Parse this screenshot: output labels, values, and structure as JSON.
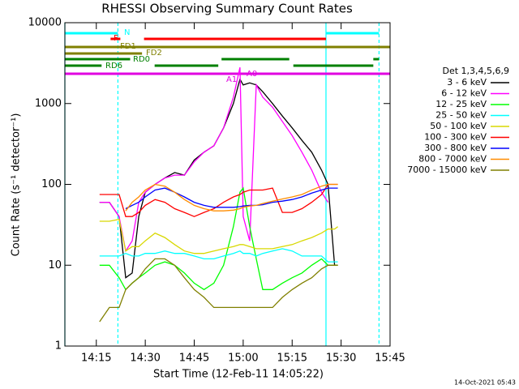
{
  "chart_data": {
    "type": "line",
    "title": "RHESSI Observing Summary Count Rates",
    "x_label": "Start Time (12-Feb-11 14:05:22)",
    "y_label": "Count Rate (s⁻¹ detector⁻¹)",
    "footer": "14-Oct-2021 05:43",
    "log_y": true,
    "xlim": [
      "14:05:22",
      "15:45"
    ],
    "xticks": [
      "14:15",
      "14:30",
      "14:45",
      "15:00",
      "15:15",
      "15:30",
      "15:45"
    ],
    "ylim": [
      1,
      10000
    ],
    "yticks": [
      1,
      10,
      100,
      1000,
      10000
    ],
    "legend_title": "Det 1,3,4,5,6,9",
    "x": [
      "14:16",
      "14:19",
      "14:22",
      "14:24",
      "14:26",
      "14:28",
      "14:30",
      "14:33",
      "14:36",
      "14:39",
      "14:42",
      "14:45",
      "14:48",
      "14:51",
      "14:54",
      "14:57",
      "14:59",
      "15:00",
      "15:02",
      "15:04",
      "15:06",
      "15:09",
      "15:12",
      "15:15",
      "15:18",
      "15:21",
      "15:24",
      "15:26",
      "15:28",
      "15:29"
    ],
    "series": [
      {
        "name": "3 - 6 keV",
        "color": "#000000",
        "values": [
          60,
          60,
          40,
          7,
          8,
          40,
          80,
          100,
          120,
          140,
          130,
          200,
          250,
          300,
          500,
          1000,
          2000,
          1700,
          1800,
          1700,
          1400,
          1000,
          700,
          500,
          350,
          250,
          150,
          100,
          10,
          10
        ]
      },
      {
        "name": "6 - 12 keV",
        "color": "#ff00ff",
        "values": [
          60,
          60,
          40,
          15,
          20,
          60,
          80,
          100,
          120,
          130,
          130,
          190,
          250,
          300,
          500,
          1200,
          2800,
          40,
          20,
          1700,
          1200,
          900,
          600,
          400,
          250,
          150,
          80,
          60,
          null,
          null
        ]
      },
      {
        "name": "12 - 25 keV",
        "color": "#00ff00",
        "values": [
          10,
          10,
          7,
          5,
          6,
          7,
          8,
          10,
          11,
          10,
          8,
          6,
          5,
          6,
          10,
          30,
          80,
          90,
          30,
          12,
          5,
          5,
          6,
          7,
          8,
          10,
          12,
          10,
          10,
          10
        ]
      },
      {
        "name": "25 - 50 keV",
        "color": "#00ffff",
        "values": [
          13,
          13,
          13,
          14,
          13,
          13,
          14,
          14,
          15,
          14,
          14,
          13,
          12,
          12,
          13,
          14,
          15,
          14,
          14,
          13,
          14,
          15,
          16,
          15,
          13,
          13,
          13,
          11,
          11,
          11
        ]
      },
      {
        "name": "50 - 100 keV",
        "color": "#d8d800",
        "values": [
          35,
          35,
          37,
          15,
          17,
          17,
          20,
          25,
          22,
          18,
          15,
          14,
          14,
          15,
          16,
          17,
          18,
          18,
          17,
          16,
          16,
          16,
          17,
          18,
          20,
          22,
          25,
          28,
          28,
          30
        ]
      },
      {
        "name": "100 - 300 keV",
        "color": "#ff0000",
        "values": [
          75,
          75,
          75,
          40,
          40,
          45,
          55,
          65,
          60,
          50,
          45,
          40,
          45,
          50,
          60,
          70,
          75,
          80,
          85,
          85,
          85,
          90,
          45,
          45,
          50,
          60,
          75,
          100,
          100,
          100
        ]
      },
      {
        "name": "300 - 800 keV",
        "color": "#0000ff",
        "values": [
          null,
          null,
          null,
          50,
          55,
          60,
          70,
          85,
          90,
          80,
          70,
          60,
          55,
          52,
          52,
          52,
          53,
          54,
          55,
          55,
          56,
          60,
          62,
          65,
          70,
          78,
          85,
          90,
          90,
          90
        ]
      },
      {
        "name": "800 - 7000 keV",
        "color": "#ff8c00",
        "values": [
          null,
          null,
          null,
          47,
          60,
          70,
          85,
          100,
          95,
          80,
          65,
          55,
          50,
          47,
          47,
          48,
          50,
          52,
          54,
          55,
          58,
          62,
          66,
          70,
          75,
          85,
          95,
          100,
          100,
          100
        ]
      },
      {
        "name": "7000 - 15000 keV",
        "color": "#808000",
        "values": [
          2,
          3,
          3,
          5,
          6,
          7,
          9,
          12,
          12,
          10,
          7,
          5,
          4,
          3,
          3,
          3,
          3,
          3,
          3,
          3,
          3,
          3,
          4,
          5,
          6,
          7,
          9,
          10,
          10,
          10
        ]
      }
    ],
    "flags": [
      {
        "label": "N",
        "color": "#00ffff",
        "segments": [
          [
            "14:05:22",
            "14:21:37"
          ],
          [
            "15:25:22",
            "15:41:37"
          ]
        ]
      },
      {
        "label": "F",
        "color": "#ff0000",
        "segments": [
          [
            "14:19:22",
            "14:22:22"
          ],
          [
            "14:29:37",
            "15:25:22"
          ]
        ]
      },
      {
        "label": "FD1",
        "color": "#808000",
        "segments": [
          [
            "14:05:22",
            "15:45"
          ]
        ]
      },
      {
        "label": "FD2",
        "color": "#808000",
        "segments": [
          [
            "14:05:22",
            "14:29:00"
          ]
        ]
      },
      {
        "label": "RD0",
        "color": "#008000",
        "segments": [
          [
            "14:05:22",
            "14:25:22"
          ],
          [
            "14:53:22",
            "15:14:07"
          ],
          [
            "15:39:52",
            "15:41:37"
          ]
        ]
      },
      {
        "label": "RD6",
        "color": "#008000",
        "segments": [
          [
            "14:05:22",
            "14:16:37"
          ],
          [
            "14:32:52",
            "14:52:22"
          ],
          [
            "15:15:22",
            "15:39:52"
          ]
        ]
      },
      {
        "label": "A1",
        "color": "#e000e0",
        "segments": [
          [
            "14:05:22",
            "15:45"
          ]
        ]
      }
    ],
    "flag_note": "A0",
    "vlines": [
      {
        "time": "14:05:22",
        "color": "#00ffff",
        "dashed": false
      },
      {
        "time": "14:21:37",
        "color": "#00ffff",
        "dashed": true
      },
      {
        "time": "15:25:22",
        "color": "#00ffff",
        "dashed": false
      },
      {
        "time": "15:41:37",
        "color": "#00ffff",
        "dashed": true
      }
    ]
  }
}
